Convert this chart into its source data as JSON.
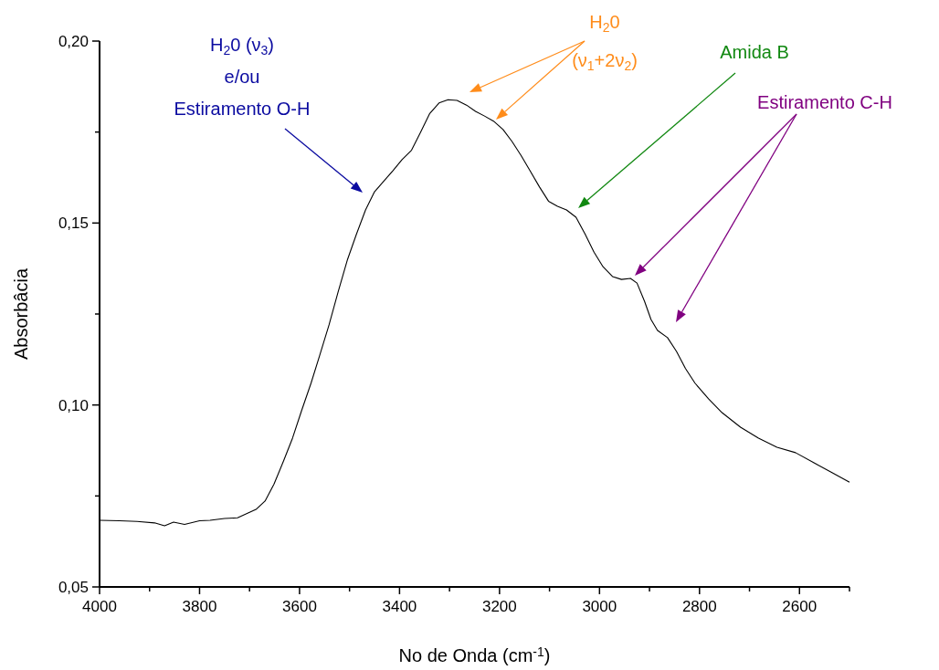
{
  "chart_data": {
    "type": "line",
    "xlabel": "No de Onda (cm$^{-1}$)",
    "ylabel": "Absorbâcia",
    "xlim": [
      4000,
      2500
    ],
    "ylim": [
      0.05,
      0.2
    ],
    "xticks": [
      4000,
      {
        "value": 3900,
        "label": null
      },
      3800,
      {
        "value": 3700,
        "label": null
      },
      3600,
      {
        "value": 3500,
        "label": null
      },
      3400,
      {
        "value": 3300,
        "label": null
      },
      3200,
      {
        "value": 3100,
        "label": null
      },
      3000,
      {
        "value": 2900,
        "label": null
      },
      2800,
      {
        "value": 2700,
        "label": null
      },
      2600,
      {
        "value": 2500,
        "label": null
      }
    ],
    "yticks": [
      {
        "value": 0.05,
        "label": "0,05"
      },
      {
        "value": 0.075,
        "label": null
      },
      {
        "value": 0.1,
        "label": "0,10"
      },
      {
        "value": 0.125,
        "label": null
      },
      {
        "value": 0.15,
        "label": "0,15"
      },
      {
        "value": 0.175,
        "label": null
      },
      {
        "value": 0.2,
        "label": "0,20"
      }
    ],
    "grid": false,
    "marker": "none",
    "line_style": "solid",
    "series": [
      {
        "color": "#000000",
        "x": [
          4000,
          3960,
          3925,
          3890,
          3870,
          3852,
          3830,
          3800,
          3779,
          3750,
          3724,
          3700,
          3687,
          3669,
          3651,
          3632,
          3614,
          3596,
          3577,
          3560,
          3541,
          3523,
          3504,
          3486,
          3468,
          3450,
          3431,
          3413,
          3395,
          3376,
          3358,
          3340,
          3321,
          3303,
          3285,
          3266,
          3248,
          3230,
          3212,
          3193,
          3175,
          3157,
          3139,
          3120,
          3102,
          3084,
          3066,
          3047,
          3029,
          3011,
          2993,
          2974,
          2956,
          2938,
          2925,
          2910,
          2897,
          2884,
          2864,
          2846,
          2828,
          2809,
          2782,
          2755,
          2718,
          2682,
          2645,
          2608,
          2571,
          2535,
          2500
        ],
        "values": [
          0.0683,
          0.0682,
          0.068,
          0.0676,
          0.0668,
          0.0678,
          0.0672,
          0.0682,
          0.0683,
          0.0688,
          0.069,
          0.0705,
          0.0713,
          0.0736,
          0.0783,
          0.0846,
          0.0909,
          0.0984,
          0.106,
          0.1135,
          0.122,
          0.131,
          0.14,
          0.147,
          0.1536,
          0.1586,
          0.1616,
          0.1644,
          0.1674,
          0.17,
          0.1749,
          0.18,
          0.183,
          0.1839,
          0.1837,
          0.1824,
          0.1807,
          0.1794,
          0.178,
          0.1757,
          0.1724,
          0.1686,
          0.1644,
          0.1599,
          0.156,
          0.1546,
          0.1536,
          0.1516,
          0.147,
          0.142,
          0.138,
          0.1353,
          0.1345,
          0.1348,
          0.1335,
          0.1285,
          0.1235,
          0.1205,
          0.1185,
          0.1147,
          0.11,
          0.106,
          0.1017,
          0.0979,
          0.0939,
          0.0909,
          0.0884,
          0.0869,
          0.0841,
          0.0814,
          0.0788
        ]
      }
    ],
    "annotations": [
      "H$_{2}$0 (ν$_{3}$)\ne/ou\nEstiramento O-H",
      "H$_{2}$0\n(ν$_{1}$+2ν$_{2}$)",
      "Amida B",
      "Estiramento C-H"
    ]
  }
}
